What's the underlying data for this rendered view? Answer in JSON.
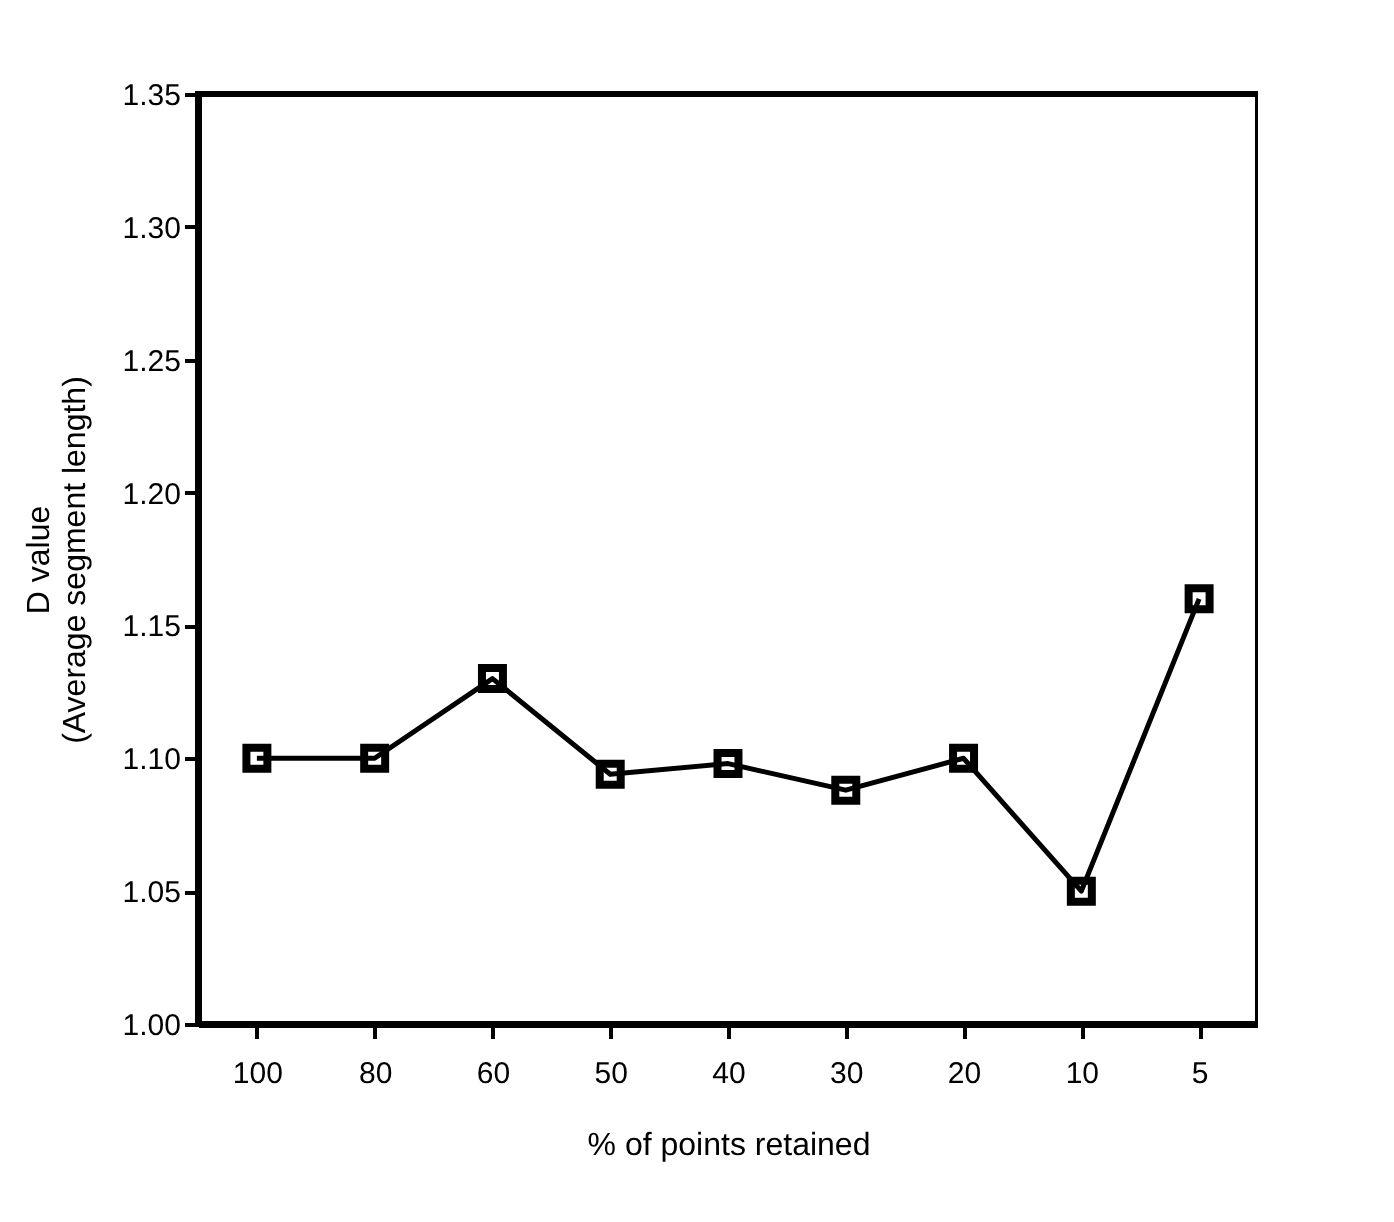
{
  "chart_data": {
    "type": "line",
    "xlabel": "% of points retained",
    "ylabel": "D value\n(Average segment length)",
    "categories": [
      "100",
      "80",
      "60",
      "50",
      "40",
      "30",
      "20",
      "10",
      "5"
    ],
    "series": [
      {
        "color": "#000000",
        "values": [
          1.1,
          1.1,
          1.13,
          1.094,
          1.098,
          1.088,
          1.1,
          1.05,
          1.16
        ]
      }
    ],
    "ylim": [
      1.0,
      1.35
    ],
    "yticks": [
      {
        "value": 1.0,
        "label": "1.00"
      },
      {
        "value": 1.05,
        "label": "1.05"
      },
      {
        "value": 1.1,
        "label": "1.10"
      },
      {
        "value": 1.15,
        "label": "1.15"
      },
      {
        "value": 1.2,
        "label": "1.20"
      },
      {
        "value": 1.25,
        "label": "1.25"
      },
      {
        "value": 1.3,
        "label": "1.30"
      },
      {
        "value": 1.35,
        "label": "1.35"
      }
    ],
    "grid": false,
    "marker": "square",
    "line_style": "solid"
  }
}
